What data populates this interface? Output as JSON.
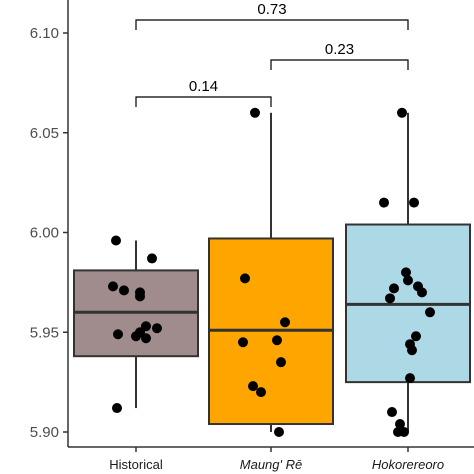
{
  "chart_data": {
    "type": "box",
    "title": "",
    "xlabel": "",
    "ylabel": "",
    "ylim": [
      5.9,
      6.1
    ],
    "yticks": [
      5.9,
      5.95,
      6.0,
      6.05,
      6.1
    ],
    "ytick_labels": [
      "5.90",
      "5.95",
      "6.00",
      "6.05",
      "6.10"
    ],
    "grid": false,
    "legend": "none",
    "categories": [
      "Historical",
      "Maung' Rē",
      "Hokorereoro"
    ],
    "italic_categories": [
      false,
      true,
      true
    ],
    "fill_colors": [
      "#a08c8c",
      "#ffa500",
      "#add8e6"
    ],
    "boxes": [
      {
        "whisker_low": 5.912,
        "q1": 5.938,
        "median": 5.96,
        "q3": 5.981,
        "whisker_high": 5.996
      },
      {
        "whisker_low": 5.9,
        "q1": 5.904,
        "median": 5.951,
        "q3": 5.997,
        "whisker_high": 6.06
      },
      {
        "whisker_low": 5.9,
        "q1": 5.925,
        "median": 5.964,
        "q3": 6.004,
        "whisker_high": 6.06
      }
    ],
    "points": [
      [
        5.996,
        5.987,
        5.973,
        5.971,
        5.97,
        5.968,
        5.953,
        5.952,
        5.95,
        5.949,
        5.948,
        5.947,
        5.912
      ],
      [
        6.06,
        5.977,
        5.955,
        5.946,
        5.945,
        5.935,
        5.923,
        5.92,
        5.9
      ],
      [
        6.06,
        6.015,
        6.015,
        5.98,
        5.976,
        5.973,
        5.972,
        5.97,
        5.967,
        5.96,
        5.948,
        5.944,
        5.941,
        5.927,
        5.91,
        5.904,
        5.9,
        5.9
      ]
    ],
    "comparisons": [
      {
        "from": 0,
        "to": 2,
        "label": "0.73"
      },
      {
        "from": 1,
        "to": 2,
        "label": "0.23"
      },
      {
        "from": 0,
        "to": 1,
        "label": "0.14"
      }
    ]
  }
}
